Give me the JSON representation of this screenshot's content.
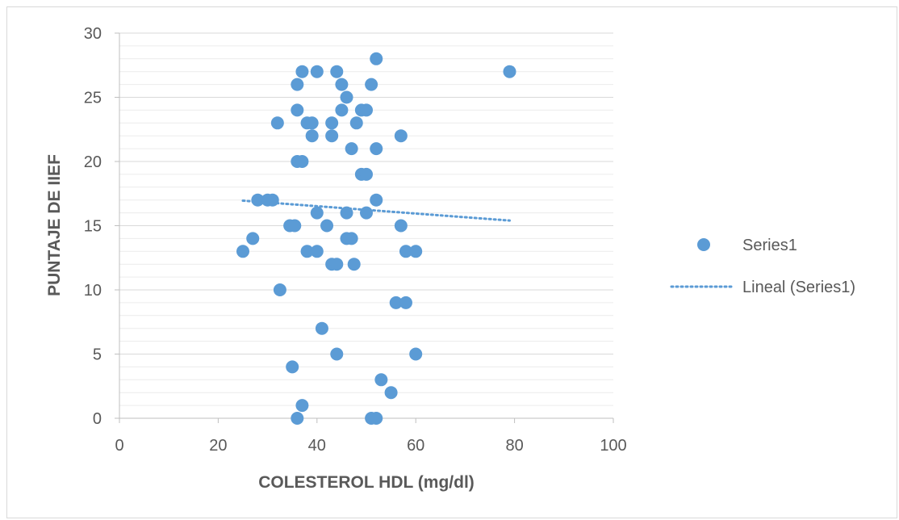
{
  "chart_data": {
    "type": "scatter",
    "title": "",
    "xlabel": "COLESTEROL HDL (mg/dl)",
    "ylabel": "PUNTAJE DE IIEF",
    "xlim": [
      0,
      100
    ],
    "ylim": [
      0,
      30
    ],
    "x_ticks": [
      "0",
      "20",
      "40",
      "60",
      "80",
      "100"
    ],
    "y_ticks": [
      "0",
      "5",
      "10",
      "15",
      "20",
      "25",
      "30"
    ],
    "grid": true,
    "legend_position": "right",
    "series": [
      {
        "name": "Series1",
        "color": "#5b9bd5",
        "points": [
          [
            52,
            28
          ],
          [
            37,
            27
          ],
          [
            40,
            27
          ],
          [
            44,
            27
          ],
          [
            79,
            27
          ],
          [
            36,
            26
          ],
          [
            45,
            26
          ],
          [
            51,
            26
          ],
          [
            46,
            25
          ],
          [
            36,
            24
          ],
          [
            45,
            24
          ],
          [
            49,
            24
          ],
          [
            50,
            24
          ],
          [
            32,
            23
          ],
          [
            38,
            23
          ],
          [
            39,
            23
          ],
          [
            43,
            23
          ],
          [
            48,
            23
          ],
          [
            39,
            22
          ],
          [
            43,
            22
          ],
          [
            57,
            22
          ],
          [
            47,
            21
          ],
          [
            52,
            21
          ],
          [
            36,
            20
          ],
          [
            37,
            20
          ],
          [
            49,
            19
          ],
          [
            50,
            19
          ],
          [
            28,
            17
          ],
          [
            30,
            17
          ],
          [
            31,
            17
          ],
          [
            52,
            17
          ],
          [
            40,
            16
          ],
          [
            46,
            16
          ],
          [
            50,
            16
          ],
          [
            34.5,
            15
          ],
          [
            35.5,
            15
          ],
          [
            42,
            15
          ],
          [
            57,
            15
          ],
          [
            27,
            14
          ],
          [
            46,
            14
          ],
          [
            47,
            14
          ],
          [
            25,
            13
          ],
          [
            38,
            13
          ],
          [
            40,
            13
          ],
          [
            58,
            13
          ],
          [
            60,
            13
          ],
          [
            43,
            12
          ],
          [
            44,
            12
          ],
          [
            47.5,
            12
          ],
          [
            32.5,
            10
          ],
          [
            56,
            9
          ],
          [
            58,
            9
          ],
          [
            41,
            7
          ],
          [
            44,
            5
          ],
          [
            60,
            5
          ],
          [
            35,
            4
          ],
          [
            53,
            3
          ],
          [
            55,
            2
          ],
          [
            37,
            1
          ],
          [
            36,
            0
          ],
          [
            51,
            0
          ],
          [
            52,
            0
          ]
        ]
      },
      {
        "name": "Lineal (Series1)",
        "color": "#5b9bd5",
        "style": "dotted",
        "x": [
          25,
          79
        ],
        "y": [
          16.95,
          15.4
        ]
      }
    ]
  }
}
